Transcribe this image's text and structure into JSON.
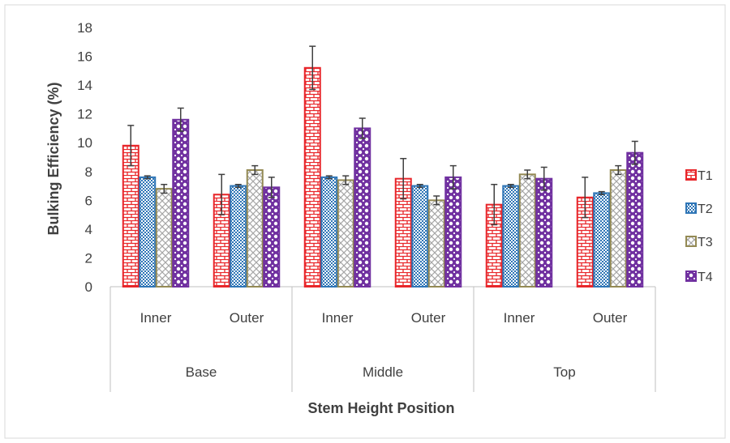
{
  "chart_data": {
    "type": "bar",
    "title": "",
    "xlabel": "Stem Height Position",
    "ylabel": "Bulking Efficiency (%)",
    "ylim": [
      0,
      18
    ],
    "yticks": [
      0,
      2,
      4,
      6,
      8,
      10,
      12,
      14,
      16,
      18
    ],
    "grid": false,
    "legend_position": "right",
    "groups": [
      {
        "label": "Base",
        "categories": [
          "Inner",
          "Outer"
        ]
      },
      {
        "label": "Middle",
        "categories": [
          "Inner",
          "Outer"
        ]
      },
      {
        "label": "Top",
        "categories": [
          "Inner",
          "Outer"
        ]
      }
    ],
    "series": [
      {
        "name": "T1",
        "color": "#e8262a",
        "values": [
          9.8,
          6.4,
          15.2,
          7.5,
          5.7,
          6.2
        ],
        "errors": [
          1.4,
          1.4,
          1.5,
          1.4,
          1.4,
          1.4
        ]
      },
      {
        "name": "T2",
        "color": "#2e75b6",
        "values": [
          7.6,
          7.0,
          7.6,
          7.0,
          7.0,
          6.5
        ],
        "errors": [
          0.1,
          0.1,
          0.1,
          0.1,
          0.1,
          0.1
        ]
      },
      {
        "name": "T3",
        "color": "#948a54",
        "values": [
          6.8,
          8.1,
          7.4,
          6.0,
          7.8,
          8.1
        ],
        "errors": [
          0.3,
          0.3,
          0.3,
          0.3,
          0.3,
          0.3
        ]
      },
      {
        "name": "T4",
        "color": "#7030a0",
        "values": [
          11.6,
          6.9,
          11.0,
          7.6,
          7.5,
          9.3
        ],
        "errors": [
          0.8,
          0.7,
          0.7,
          0.8,
          0.8,
          0.8
        ]
      }
    ]
  }
}
